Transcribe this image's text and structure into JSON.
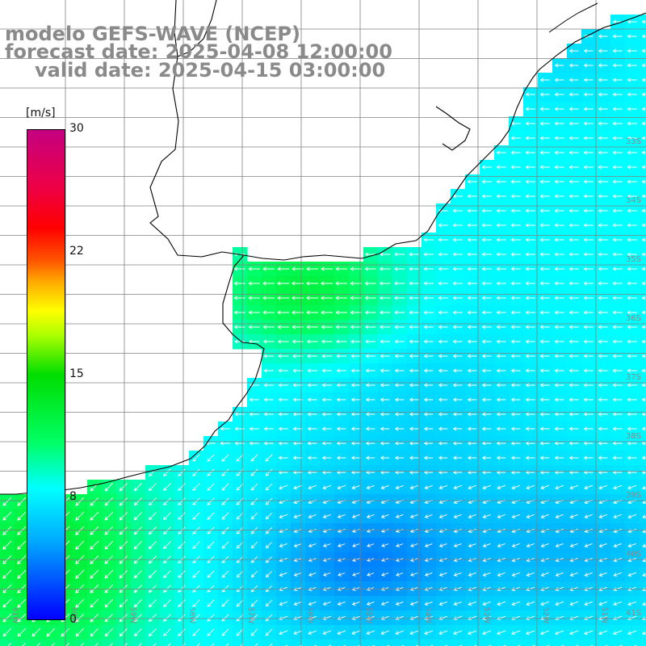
{
  "title": {
    "line1": "modelo GEFS-WAVE (NCEP)",
    "line2": "forecast date: 2025-04-08 12:00:00",
    "line3": "valid date: 2025-04-15 03:00:00"
  },
  "colorbar": {
    "unit": "[m/s]",
    "ticks": [
      "30",
      "22",
      "15",
      "8",
      "0"
    ],
    "tick_values": [
      30,
      22,
      15,
      8,
      0
    ]
  },
  "lat_labels": [
    "33S",
    "34S",
    "35S",
    "36S",
    "37S",
    "38S",
    "39S",
    "40S",
    "41S"
  ],
  "lon_labels": [
    "61W",
    "60W",
    "59W",
    "58W",
    "57W",
    "56W",
    "55W",
    "54W",
    "53W",
    "52W",
    "51W"
  ],
  "colors": {
    "land": "#ffffff",
    "coast": "#000000",
    "grid": "#808080",
    "arrow": "#ffffff",
    "label": "#8a8a8a"
  }
}
